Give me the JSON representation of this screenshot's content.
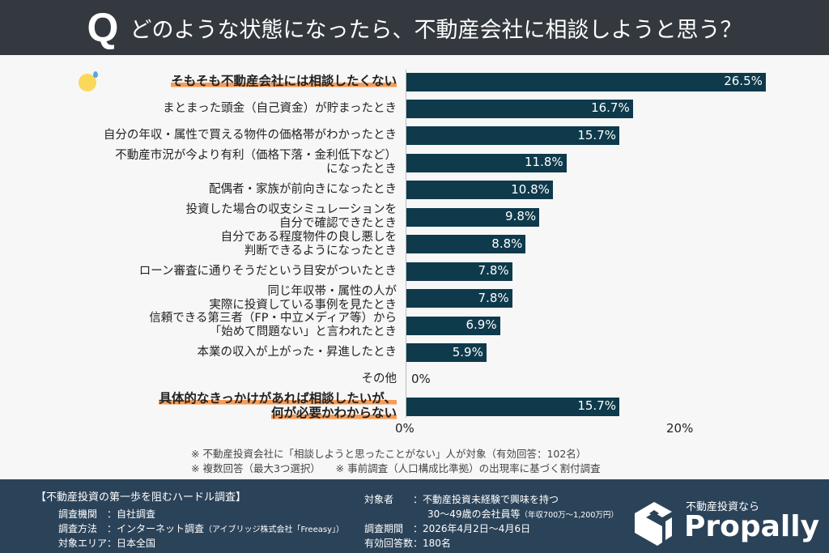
{
  "header": {
    "q": "Q",
    "title": "どのような状態になったら、不動産会社に相談しようと思う？"
  },
  "chart_data": {
    "type": "bar",
    "orientation": "horizontal",
    "unit": "%",
    "xlim": [
      0,
      27
    ],
    "grid": false,
    "bar_color": "#0e3a4c",
    "highlight_color": "#f79b55",
    "categories": [
      [
        "そもそも不動産会社には相談したくない"
      ],
      [
        "まとまった頭金（自己資金）が貯まったとき"
      ],
      [
        "自分の年収・属性で買える物件の価格帯がわかったとき"
      ],
      [
        "不動産市況が今より有利（価格下落・金利低下など）",
        "になったとき"
      ],
      [
        "配偶者・家族が前向きになったとき"
      ],
      [
        "投資した場合の収支シミュレーションを",
        "自分で確認できたとき"
      ],
      [
        "自分である程度物件の良し悪しを",
        "判断できるようになったとき"
      ],
      [
        "ローン審査に通りそうだという目安がついたとき"
      ],
      [
        "同じ年収帯・属性の人が",
        "実際に投資している事例を見たとき"
      ],
      [
        "信頼できる第三者（FP・中立メディア等）から",
        "「始めて問題ない」と言われたとき"
      ],
      [
        "本業の収入が上がった・昇進したとき"
      ],
      [
        "その他"
      ],
      [
        "具体的なきっかけがあれば相談したいが、",
        "何が必要かわからない"
      ]
    ],
    "values": [
      26.5,
      16.7,
      15.7,
      11.8,
      10.8,
      9.8,
      8.8,
      7.8,
      7.8,
      6.9,
      5.9,
      0,
      15.7
    ],
    "value_labels": [
      "26.5%",
      "16.7%",
      "15.7%",
      "11.8%",
      "10.8%",
      "9.8%",
      "8.8%",
      "7.8%",
      "7.8%",
      "6.9%",
      "5.9%",
      "0%",
      "15.7%"
    ],
    "highlighted": [
      0,
      12
    ],
    "xticks": [
      {
        "value": 0,
        "label": "0%"
      },
      {
        "value": 20,
        "label": "20%"
      }
    ]
  },
  "notes": [
    "※ 不動産投資会社に「相談しようと思ったことがない」人が対象（有効回答：102名）",
    "※ 複数回答（最大3つ選択）　　※ 事前調査（人口構成比準拠）の出現率に基づく割付調査"
  ],
  "footer": {
    "survey_title": "【不動産投資の第一歩を阻むハードル調査】",
    "org": "調査機関　：自社調査",
    "method": "調査方法　：インターネット調査",
    "method_note": "（アイブリッジ株式会社「Freeasy」）",
    "area": "対象エリア：日本全国",
    "target": "対象者　　：不動産投資未経験で興味を持つ",
    "target2": "30～49歳の会社員等",
    "target2_note": "（年収700万～1,200万円）",
    "period": "調査期間　：2026年4月2日～4月6日",
    "responses": "有効回答数：180名"
  },
  "logo": {
    "sub": "不動産投資なら",
    "name": "Propally",
    "icon": "box-logo-icon"
  }
}
